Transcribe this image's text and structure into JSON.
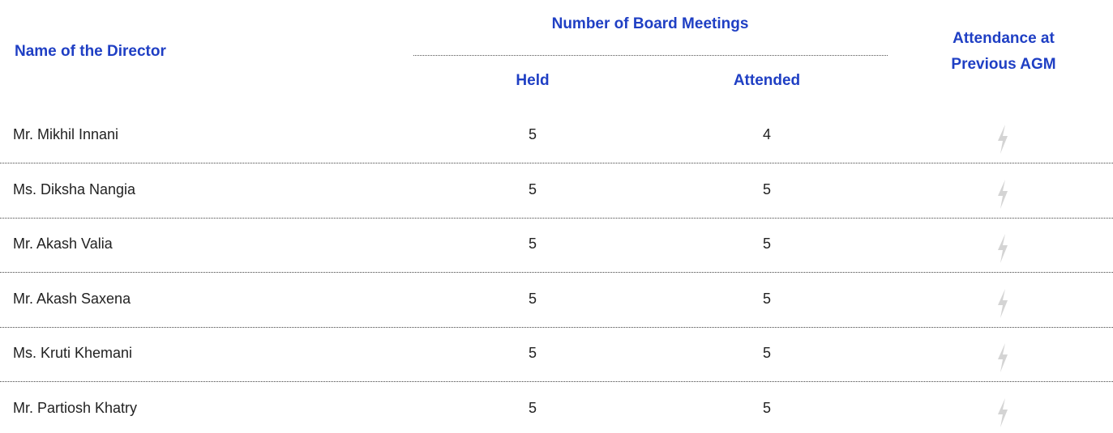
{
  "header": {
    "name": "Name of the Director",
    "group": "Number of Board Meetings",
    "held": "Held",
    "attended": "Attended",
    "attendance": "Attendance at Previous AGM"
  },
  "table": {
    "rows": [
      [
        "Mr. Mikhil Innani",
        5,
        4
      ],
      [
        "Ms. Diksha Nangia",
        5,
        5
      ],
      [
        "Mr. Akash Valia",
        5,
        5
      ],
      [
        "Mr. Akash Saxena",
        5,
        5
      ],
      [
        "Ms. Kruti Khemani",
        5,
        5
      ],
      [
        "Mr. Partiosh Khatry",
        5,
        5
      ]
    ]
  }
}
